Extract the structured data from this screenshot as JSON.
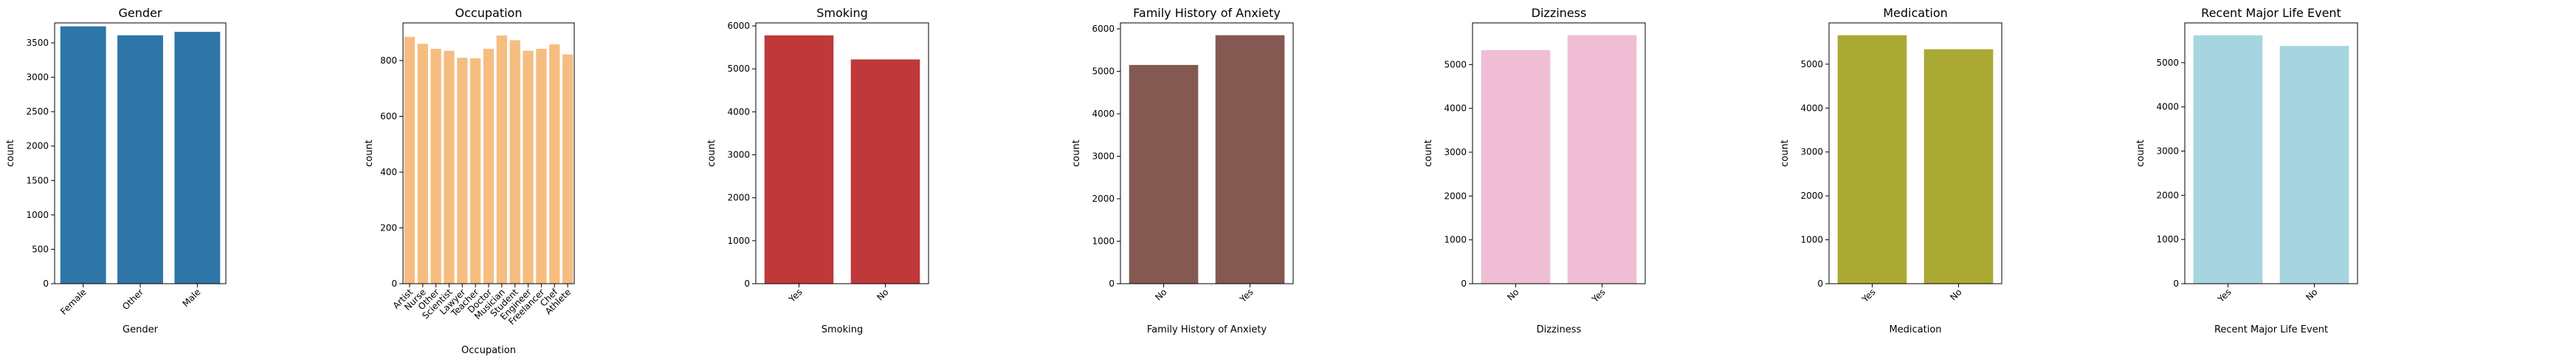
{
  "chart_data": [
    {
      "type": "bar",
      "title": "Gender",
      "xlabel": "Gender",
      "ylabel": "count",
      "color": "#2e75a8",
      "categories": [
        "Female",
        "Other",
        "Male"
      ],
      "values": [
        3740,
        3610,
        3660
      ],
      "ylim": [
        0,
        3790
      ],
      "yticks": [
        "0",
        "500",
        "1000",
        "1500",
        "2000",
        "2500",
        "3000",
        "3500"
      ]
    },
    {
      "type": "bar",
      "title": "Occupation",
      "xlabel": "Occupation",
      "ylabel": "count",
      "color": "#f6bd80",
      "categories": [
        "Artist",
        "Nurse",
        "Other",
        "Scientist",
        "Lawyer",
        "Teacher",
        "Doctor",
        "Musician",
        "Student",
        "Engineer",
        "Freelancer",
        "Chef",
        "Athlete"
      ],
      "values": [
        885,
        860,
        842,
        835,
        810,
        808,
        842,
        890,
        873,
        835,
        842,
        858,
        822
      ],
      "ylim": [
        0,
        935
      ],
      "yticks": [
        "0",
        "200",
        "400",
        "600",
        "800"
      ]
    },
    {
      "type": "bar",
      "title": "Smoking",
      "xlabel": "Smoking",
      "ylabel": "count",
      "color": "#bf393a",
      "categories": [
        "Yes",
        "No"
      ],
      "values": [
        5780,
        5220
      ],
      "ylim": [
        0,
        6070
      ],
      "yticks": [
        "0",
        "1000",
        "2000",
        "3000",
        "4000",
        "5000",
        "6000"
      ]
    },
    {
      "type": "bar",
      "title": "Family History of Anxiety",
      "xlabel": "Family History of Anxiety",
      "ylabel": "count",
      "color": "#835952",
      "categories": [
        "No",
        "Yes"
      ],
      "values": [
        5150,
        5850
      ],
      "ylim": [
        0,
        6140
      ],
      "yticks": [
        "0",
        "1000",
        "2000",
        "3000",
        "4000",
        "5000",
        "6000"
      ]
    },
    {
      "type": "bar",
      "title": "Dizziness",
      "xlabel": "Dizziness",
      "ylabel": "count",
      "color": "#efbed4",
      "categories": [
        "No",
        "Yes"
      ],
      "values": [
        5330,
        5670
      ],
      "ylim": [
        0,
        5950
      ],
      "yticks": [
        "0",
        "1000",
        "2000",
        "3000",
        "4000",
        "5000"
      ]
    },
    {
      "type": "bar",
      "title": "Medication",
      "xlabel": "Medication",
      "ylabel": "count",
      "color": "#a9a934",
      "categories": [
        "Yes",
        "No"
      ],
      "values": [
        5660,
        5340
      ],
      "ylim": [
        0,
        5940
      ],
      "yticks": [
        "0",
        "1000",
        "2000",
        "3000",
        "4000",
        "5000"
      ]
    },
    {
      "type": "bar",
      "title": "Recent Major Life Event",
      "xlabel": "Recent Major Life Event",
      "ylabel": "count",
      "color": "#a7d5df",
      "categories": [
        "Yes",
        "No"
      ],
      "values": [
        5620,
        5380
      ],
      "ylim": [
        0,
        5900
      ],
      "yticks": [
        "0",
        "1000",
        "2000",
        "3000",
        "4000",
        "5000"
      ]
    }
  ]
}
